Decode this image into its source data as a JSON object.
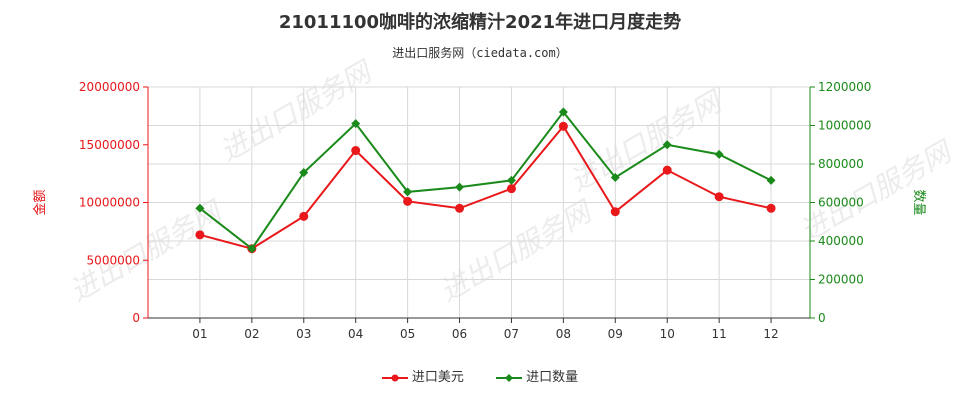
{
  "title": "21011100咖啡的浓缩精汁2021年进口月度走势",
  "subtitle": "进出口服务网（ciedata.com）",
  "watermark": "进出口服务网",
  "colors": {
    "left": "#e8181b",
    "right": "#1a8a1a",
    "grid": "#d8d8d8"
  },
  "chart_data": {
    "type": "line",
    "categories": [
      "01",
      "02",
      "03",
      "04",
      "05",
      "06",
      "07",
      "08",
      "09",
      "10",
      "11",
      "12"
    ],
    "series": [
      {
        "name": "进口美元",
        "axis": "left",
        "color": "#e8181b",
        "values": [
          7200000,
          6000000,
          8800000,
          14500000,
          10100000,
          9500000,
          11200000,
          16600000,
          9200000,
          12800000,
          10500000,
          9500000
        ]
      },
      {
        "name": "进口数量",
        "axis": "right",
        "color": "#1a8a1a",
        "values": [
          570000,
          360000,
          755000,
          1010000,
          655000,
          680000,
          715000,
          1070000,
          730000,
          900000,
          850000,
          715000
        ]
      }
    ],
    "ylabel_left": "金额",
    "ylabel_right": "数量",
    "ylim_left": [
      0,
      20000000
    ],
    "ylim_right": [
      0,
      1200000
    ],
    "yticks_left": [
      "0",
      "5000000",
      "10000000",
      "15000000",
      "20000000"
    ],
    "yticks_right": [
      "0",
      "200000",
      "400000",
      "600000",
      "800000",
      "1000000",
      "1200000"
    ],
    "grid": true,
    "legend": "bottom"
  }
}
